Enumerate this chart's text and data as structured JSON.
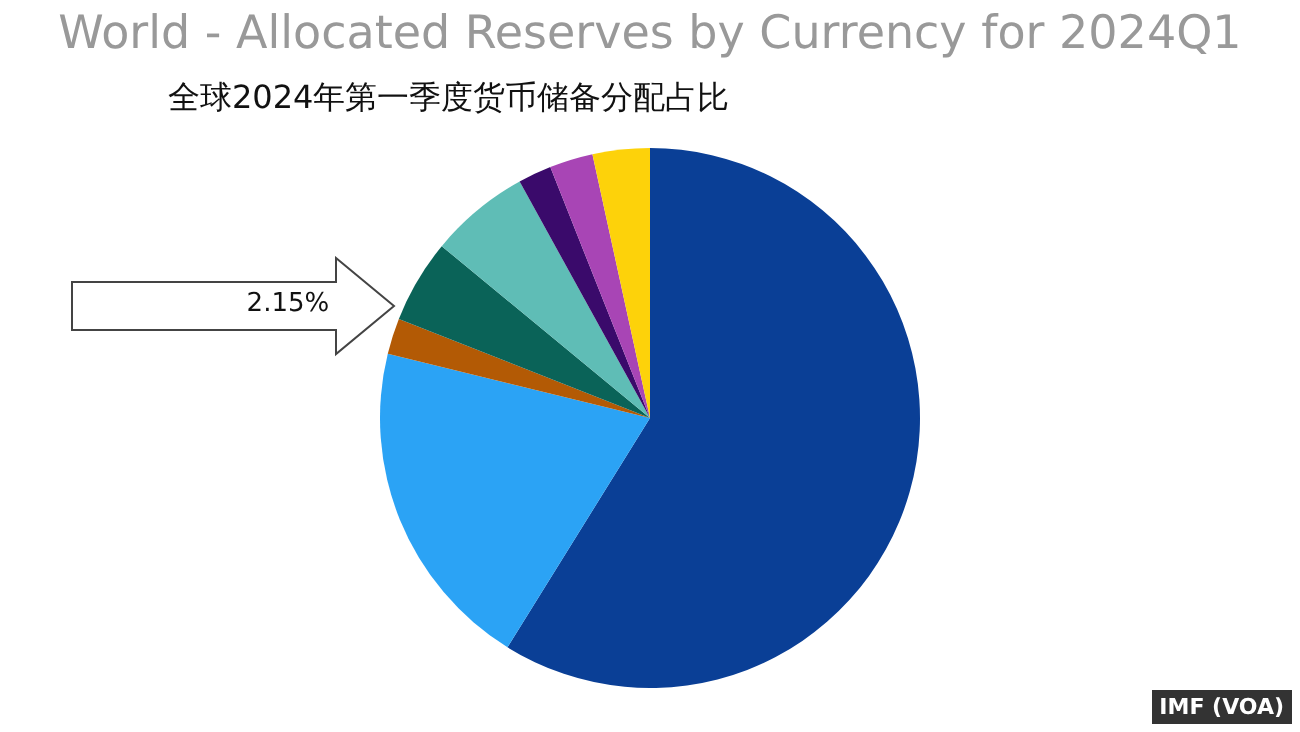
{
  "chart_data": {
    "type": "pie",
    "title": "World - Allocated Reserves by Currency for 2024Q1",
    "subtitle": "全球2024年第一季度货币储备分配占比",
    "categories": [
      null,
      null,
      null,
      null,
      null,
      null,
      null,
      null
    ],
    "values": [
      58.85,
      19.98,
      2.15,
      5.0,
      6.0,
      2.0,
      2.6,
      3.42
    ],
    "colors": [
      "#0a3f96",
      "#2ba3f5",
      "#b35a05",
      "#0a6358",
      "#5fbdb6",
      "#3a0a6b",
      "#a845b5",
      "#fdd20a"
    ],
    "value_labels": [
      null,
      null,
      "2.15%",
      null,
      null,
      null,
      null,
      null
    ],
    "annotations": [
      "IMF (VOA)"
    ]
  }
}
